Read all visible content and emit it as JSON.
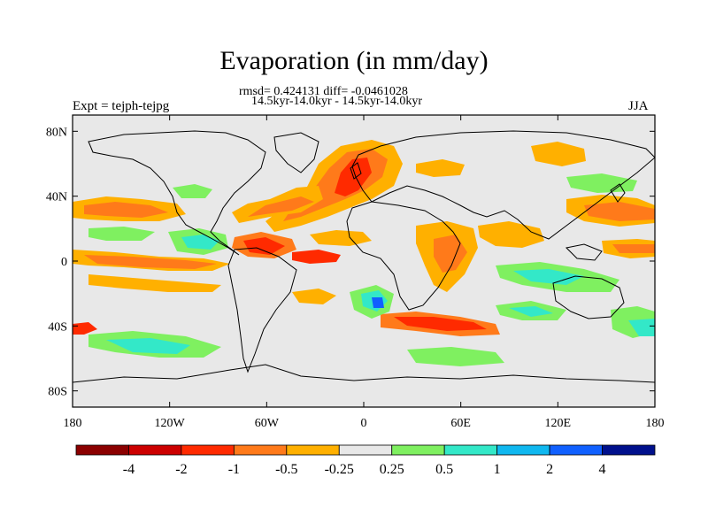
{
  "title": "Evaporation (in mm/day)",
  "stats_line": "rmsd= 0.424131 diff= -0.0461028",
  "period_line": "14.5kyr-14.0kyr - 14.5kyr-14.0kyr",
  "experiment": "Expt = tejph-tejpg",
  "season": "JJA",
  "axes": {
    "lat_ticks": [
      {
        "value": 80,
        "label": "80N"
      },
      {
        "value": 40,
        "label": "40N"
      },
      {
        "value": 0,
        "label": "0"
      },
      {
        "value": -40,
        "label": "40S"
      },
      {
        "value": -80,
        "label": "80S"
      }
    ],
    "lon_ticks": [
      {
        "value": -180,
        "label": "180"
      },
      {
        "value": -120,
        "label": "120W"
      },
      {
        "value": -60,
        "label": "60W"
      },
      {
        "value": 0,
        "label": "0"
      },
      {
        "value": 60,
        "label": "60E"
      },
      {
        "value": 120,
        "label": "120E"
      },
      {
        "value": 180,
        "label": "180"
      }
    ],
    "lon_range": [
      -180,
      180
    ],
    "lat_range": [
      -90,
      90
    ]
  },
  "colorbar": {
    "colors": [
      "#8b0000",
      "#cc0000",
      "#ff2a00",
      "#ff7a1a",
      "#ffb000",
      "#e8e8e8",
      "#7ff060",
      "#33e8c8",
      "#10b8f0",
      "#1060ff",
      "#00108c"
    ],
    "labels": [
      "-4",
      "-2",
      "-1",
      "-0.5",
      "-0.25",
      "0.25",
      "0.5",
      "1",
      "2",
      "4"
    ]
  },
  "colors": {
    "ocean_background": "#e8e8e8",
    "coastline": "#000000"
  }
}
